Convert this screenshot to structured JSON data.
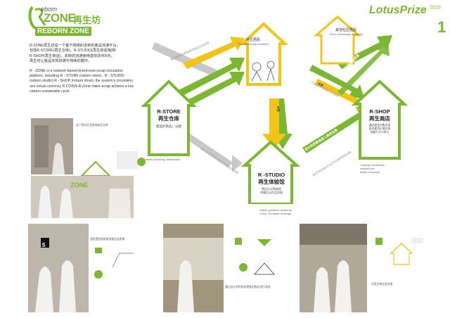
{
  "header": {
    "logo_top": "eborn",
    "logo_r": "R",
    "logo_zone": "ZONE",
    "logo_cn": "再生坊",
    "logo_reborn": "REBORN ZONE",
    "lotus": "LotusPrize",
    "year": "2010",
    "page_number": "1"
  },
  "intro": {
    "cn_line1": "R-ZONE再生坊是一个基于网络的全新的废品流通平台。",
    "cn_line2": "包括R-STORE(再生仓库)、R-STUDIO(再生体验馆)和",
    "cn_line3": "R-SHOP(再生商店)。系统的流通使用虚拟货币R币。",
    "cn_line4": "再生坊让废品实现低碳可持续的循环。",
    "en_line1": "R - ZONE is a network-based brand-new scrap circulation",
    "en_line2": "platform, including R - STORE (reborn store) , R - STUDIO",
    "en_line3": "(reborn studio) R - SHOP (reborn shop), the system's circulation",
    "en_line4": "use virtual currency R COINS.R-Zone make scrap achieve a low",
    "en_line5": "carbon sustainable cycle."
  },
  "diagram": {
    "community": {
      "cn": "社区居民",
      "en": "The community residents"
    },
    "other_community": {
      "cn": "其他社区居民",
      "en": "Other community residents"
    },
    "rstore": {
      "title": "R-STORE",
      "cn": "再生仓库",
      "sub": "废品的筛选、分配",
      "en": "Waste screening, distribution"
    },
    "rshop": {
      "title": "R-SHOP",
      "cn": "再生商店",
      "sub": "通过展会出售实现\n再次使用价值实现\n的能力大众参与",
      "en": "Through exhibitions\nrealized the\nability of society"
    },
    "rstudio": {
      "title": "R -STUDIO",
      "cn": "再生体验馆",
      "sub": "将设计过程体验\n并最后以作品呈现",
      "en": "Waste guidance residents\nCarry out waste redesign"
    },
    "arrow_labels": {
      "a1": "上门回收收购",
      "a2": "回收R币",
      "a3": "R币",
      "a4": "居民参与设计体验",
      "a5": "居民使用R币购买",
      "a6": "设计后的废品进入商店出售",
      "a7": "R币",
      "a8": "通过各种途径出售",
      "a9": "网络进行交易"
    },
    "side_notes": {
      "n1": "通过居民自愿拿来的废品仓库回收",
      "n2": "把可以再利用的废品送到再生体验馆",
      "n3": "产品直接出售给社区居民",
      "n4": "再生体验馆的作品可以放到商店出售"
    }
  },
  "photos": {
    "p1_caption": "这个是社区里面的废品仓库",
    "p2_caption": "居民把旧报纸废旧物品送进来",
    "p3_caption": "通过设计师的指导把废旧物品进行改造",
    "p4_caption": "在再生商店里出售",
    "scan_label": "5"
  },
  "colors": {
    "green": "#7cb733",
    "yellow": "#f2c418",
    "grey": "#b9b9b9",
    "dark": "#333333"
  }
}
